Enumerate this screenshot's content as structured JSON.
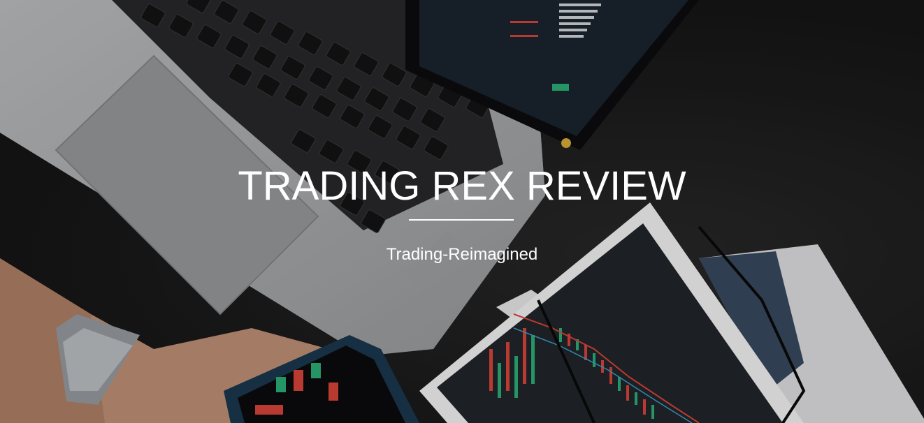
{
  "hero": {
    "title": "TRADING REX REVIEW",
    "subtitle": "Trading-Reimagined",
    "background_image": "laptop-keyboard, trading-chart-printouts, smartphone-in-hand, tablet-with-order-book",
    "colors": {
      "background": "#1b1b1b",
      "text": "#ffffff",
      "laptop": "#b9bbbd",
      "chart_up": "#2eb67d",
      "chart_down": "#e2473b"
    }
  }
}
